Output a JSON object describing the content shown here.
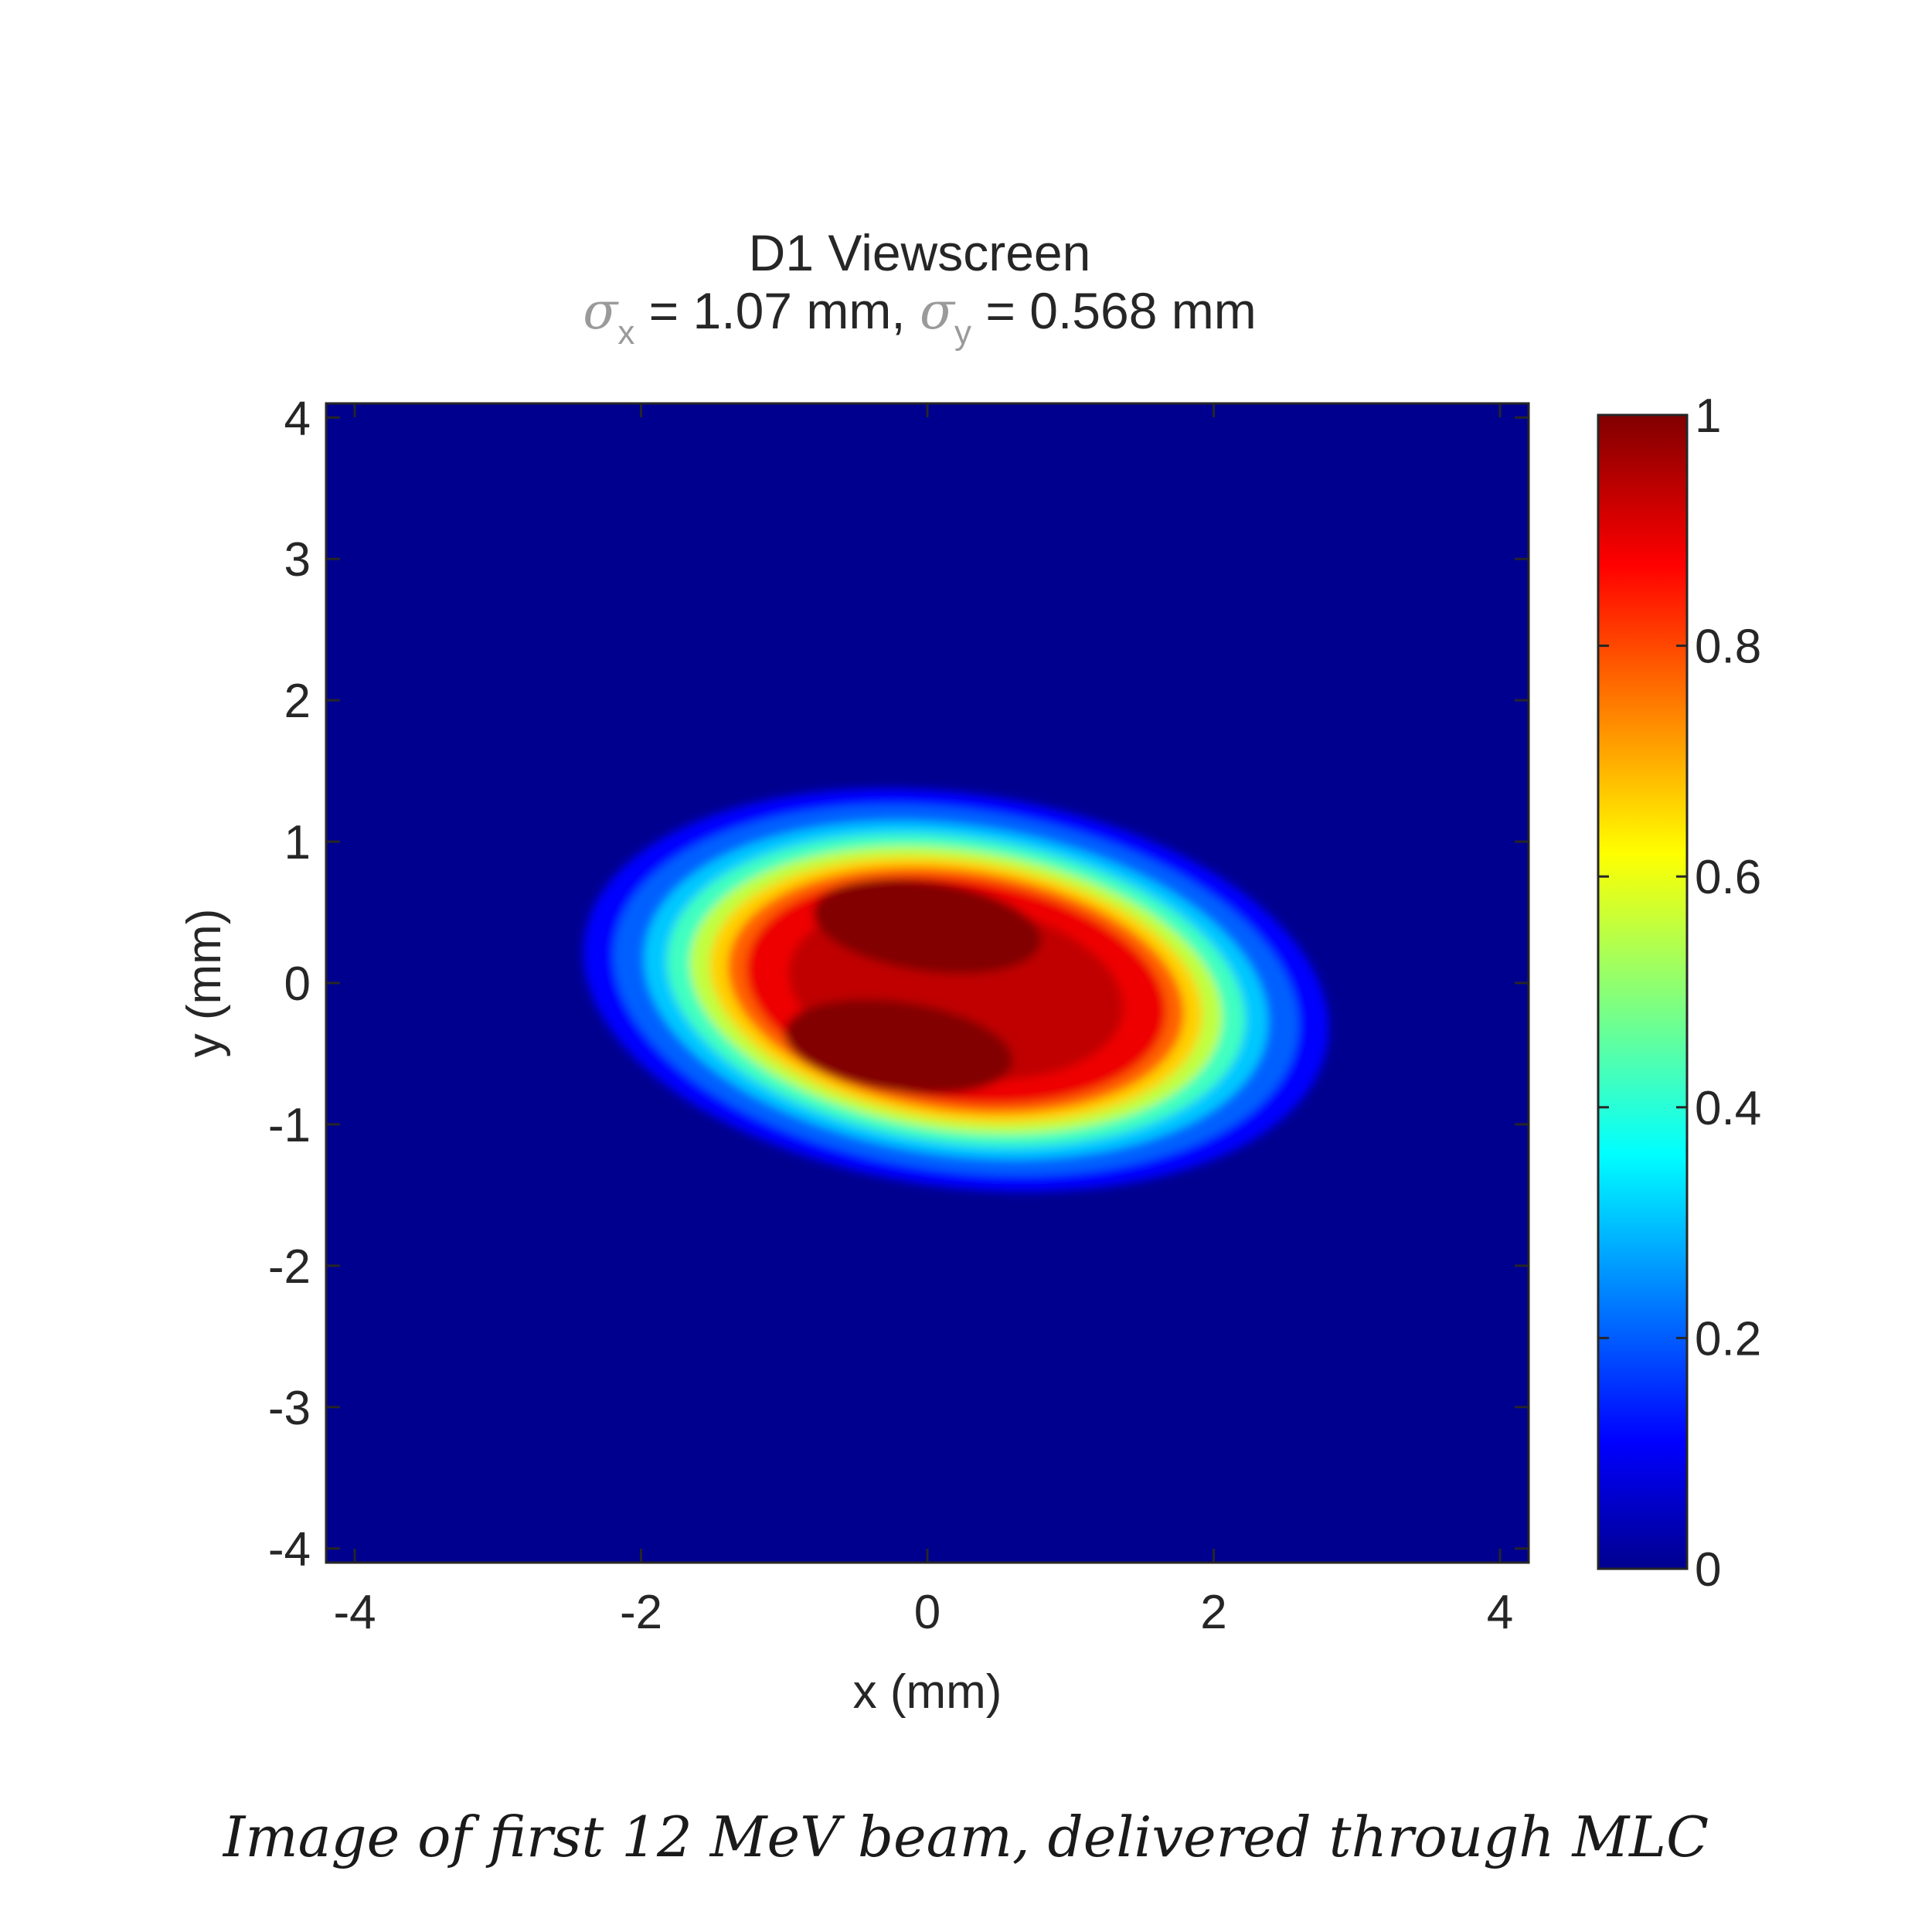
{
  "chart_data": {
    "type": "heatmap",
    "title": "D1 Viewscreen",
    "subtitle": {
      "sigma_x_symbol": "σ",
      "sigma_x_index": "x",
      "sigma_x_value": " = 1.07 mm, ",
      "sigma_y_symbol": "σ",
      "sigma_y_index": "y",
      "sigma_y_value": " = 0.568 mm"
    },
    "xlabel": "x (mm)",
    "ylabel": "y (mm)",
    "xlim": [
      -4.2,
      4.2
    ],
    "ylim": [
      -4.1,
      4.1
    ],
    "x_ticks": [
      -4,
      -2,
      0,
      2,
      4
    ],
    "x_tick_labels": [
      "-4",
      "-2",
      "0",
      "2",
      "4"
    ],
    "y_ticks": [
      4,
      3,
      2,
      1,
      0,
      -1,
      -2,
      -3,
      -4
    ],
    "y_tick_labels": [
      "4",
      "3",
      "2",
      "1",
      "0",
      "-1",
      "-2",
      "-3",
      "-4"
    ],
    "colormap": "jet",
    "clim": [
      0,
      1
    ],
    "colorbar_ticks": [
      0,
      0.2,
      0.4,
      0.6,
      0.8,
      1
    ],
    "colorbar_tick_labels": [
      "0",
      "0.2",
      "0.4",
      "0.6",
      "0.8",
      "1"
    ],
    "beam": {
      "center_x": 0.2,
      "center_y": -0.05,
      "sigma_x_mm": 1.07,
      "sigma_y_mm": 0.568,
      "tilt_deg": 8,
      "peaks": [
        {
          "x": 0.0,
          "y": 0.4,
          "amplitude": 1.0
        },
        {
          "x": -0.2,
          "y": -0.45,
          "amplitude": 1.0
        }
      ]
    },
    "background_color": "#00008f"
  },
  "caption": "Image of first 12 MeV beam, delivered through MLC"
}
